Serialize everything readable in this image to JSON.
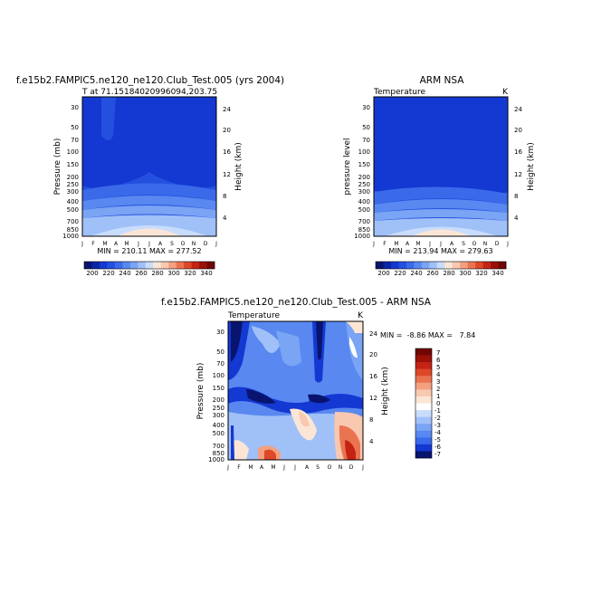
{
  "chart_data": [
    {
      "type": "heatmap",
      "title": "f.e15b2.FAMPIC5.ne120_ne120.Club_Test.005 (yrs 2004)",
      "subtitle_left": "T at 71.15184020996094,203.75",
      "subtitle_right": "",
      "stats": "MIN = 210.11 MAX = 277.52",
      "ylabel": "Pressure (mb)",
      "ylabel_right": "Height (km)",
      "pressure_ticks": [
        "30",
        "50",
        "70",
        "100",
        "150",
        "200",
        "250",
        "300",
        "400",
        "500",
        "700",
        "850",
        "1000"
      ],
      "height_ticks": [
        "24",
        "20",
        "16",
        "12",
        "8",
        "4"
      ],
      "months": [
        "J",
        "F",
        "M",
        "A",
        "M",
        "J",
        "J",
        "A",
        "S",
        "O",
        "N",
        "D",
        "J"
      ],
      "colorbar_labels": [
        "200",
        "220",
        "240",
        "260",
        "280",
        "300",
        "320",
        "340"
      ]
    },
    {
      "type": "heatmap",
      "title": "ARM NSA",
      "subtitle_left": "Temperature",
      "subtitle_right": "K",
      "stats": "MIN = 213.94 MAX = 279.63",
      "ylabel": "pressure level",
      "ylabel_right": "Height (km)",
      "pressure_ticks": [
        "30",
        "50",
        "70",
        "100",
        "150",
        "200",
        "250",
        "300",
        "400",
        "500",
        "700",
        "850",
        "1000"
      ],
      "height_ticks": [
        "24",
        "20",
        "16",
        "12",
        "8",
        "4"
      ],
      "months": [
        "J",
        "F",
        "M",
        "A",
        "M",
        "J",
        "J",
        "A",
        "S",
        "O",
        "N",
        "D",
        "J"
      ],
      "colorbar_labels": [
        "200",
        "220",
        "240",
        "260",
        "280",
        "300",
        "320",
        "340"
      ]
    },
    {
      "type": "heatmap",
      "title": "f.e15b2.FAMPIC5.ne120_ne120.Club_Test.005 - ARM NSA",
      "subtitle_left": "Temperature",
      "subtitle_right": "K",
      "stats": "MIN =  -8.86 MAX =   7.84",
      "ylabel": "Pressure (mb)",
      "ylabel_right": "Height (km)",
      "pressure_ticks": [
        "30",
        "50",
        "70",
        "100",
        "150",
        "200",
        "250",
        "300",
        "400",
        "500",
        "700",
        "850",
        "1000"
      ],
      "height_ticks": [
        "24",
        "20",
        "16",
        "12",
        "8",
        "4"
      ],
      "months": [
        "J",
        "F",
        "M",
        "A",
        "M",
        "J",
        "J",
        "A",
        "S",
        "O",
        "N",
        "D",
        "J"
      ],
      "colorbar_labels": [
        "7",
        "6",
        "5",
        "4",
        "3",
        "2",
        "1",
        "0",
        "-1",
        "-2",
        "-3",
        "-4",
        "-5",
        "-6",
        "-7"
      ]
    }
  ],
  "colors": {
    "abs_palette": [
      "#08146e",
      "#0a24a6",
      "#1438d2",
      "#2450e0",
      "#3a6aea",
      "#5888f0",
      "#7aa4f4",
      "#a0c0f8",
      "#c8dcfc",
      "#fbe6d6",
      "#f8c8b0",
      "#f4a080",
      "#ea7450",
      "#dc4828",
      "#c42414",
      "#9c1008",
      "#700604"
    ],
    "diff_palette": [
      "#700604",
      "#9c1008",
      "#c42414",
      "#dc4828",
      "#ea7450",
      "#f4a080",
      "#f8c8b0",
      "#fbe6d6",
      "#ffffff",
      "#c8dcfc",
      "#a0c0f8",
      "#7aa4f4",
      "#5888f0",
      "#3a6aea",
      "#1438d2",
      "#08146e"
    ]
  }
}
